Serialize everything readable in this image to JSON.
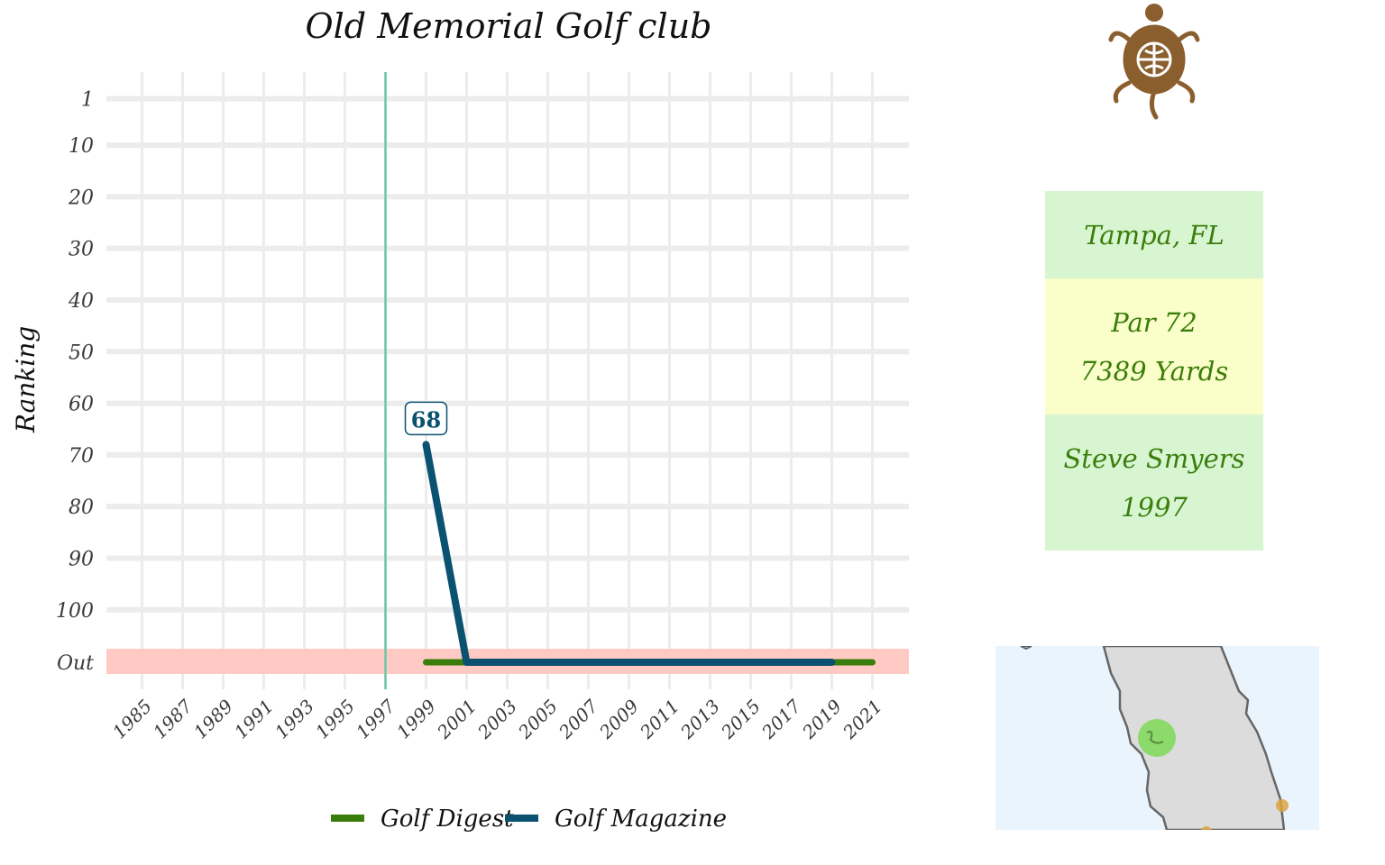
{
  "chart_data": {
    "type": "line",
    "title": "Old Memorial Golf club",
    "xlabel": "",
    "ylabel": "Ranking",
    "x_ticks": [
      "1985",
      "1987",
      "1989",
      "1991",
      "1993",
      "1995",
      "1997",
      "1999",
      "2001",
      "2003",
      "2005",
      "2007",
      "2009",
      "2011",
      "2013",
      "2015",
      "2017",
      "2019",
      "2021"
    ],
    "y_ticks": [
      "1",
      "10",
      "20",
      "30",
      "40",
      "50",
      "60",
      "70",
      "80",
      "90",
      "100",
      "Out"
    ],
    "xlim": [
      1984,
      2022
    ],
    "ylim": [
      1,
      110
    ],
    "out_value": 110,
    "marker_year": 1997,
    "series": [
      {
        "name": "Golf Digest",
        "color": "#3a7d0a",
        "points": [
          [
            1999,
            110
          ],
          [
            2001,
            110
          ],
          [
            2003,
            110
          ],
          [
            2005,
            110
          ],
          [
            2007,
            110
          ],
          [
            2009,
            110
          ],
          [
            2011,
            110
          ],
          [
            2013,
            110
          ],
          [
            2015,
            110
          ],
          [
            2017,
            110
          ],
          [
            2019,
            110
          ],
          [
            2021,
            110
          ]
        ]
      },
      {
        "name": "Golf Magazine",
        "color": "#0b5270",
        "points": [
          [
            1999,
            68
          ],
          [
            2001,
            110
          ],
          [
            2003,
            110
          ],
          [
            2005,
            110
          ],
          [
            2007,
            110
          ],
          [
            2009,
            110
          ],
          [
            2011,
            110
          ],
          [
            2013,
            110
          ],
          [
            2015,
            110
          ],
          [
            2017,
            110
          ],
          [
            2019,
            110
          ]
        ]
      }
    ],
    "annotations": [
      {
        "x": 1999,
        "y": 68,
        "text": "68",
        "series": "Golf Magazine"
      }
    ],
    "grid": true,
    "legend": "bottom"
  },
  "info": {
    "location": "Tampa, FL",
    "par": "Par 72",
    "yards": "7389 Yards",
    "architect": "Steve Smyers",
    "year": "1997"
  },
  "colors": {
    "out_band": "#ffc9c4",
    "marker_line": "#6cc7a8",
    "info_green": "#d6f5d0",
    "info_yellow": "#fafec8",
    "info_text": "#3a7d0a",
    "map_water": "#eaf4fd",
    "map_land": "#dcdcdc",
    "map_highlight": "#7ed957",
    "map_other": "#d9a441",
    "logo_brown": "#8b5e2e"
  },
  "icons": {
    "logo": "turtle-icon"
  }
}
